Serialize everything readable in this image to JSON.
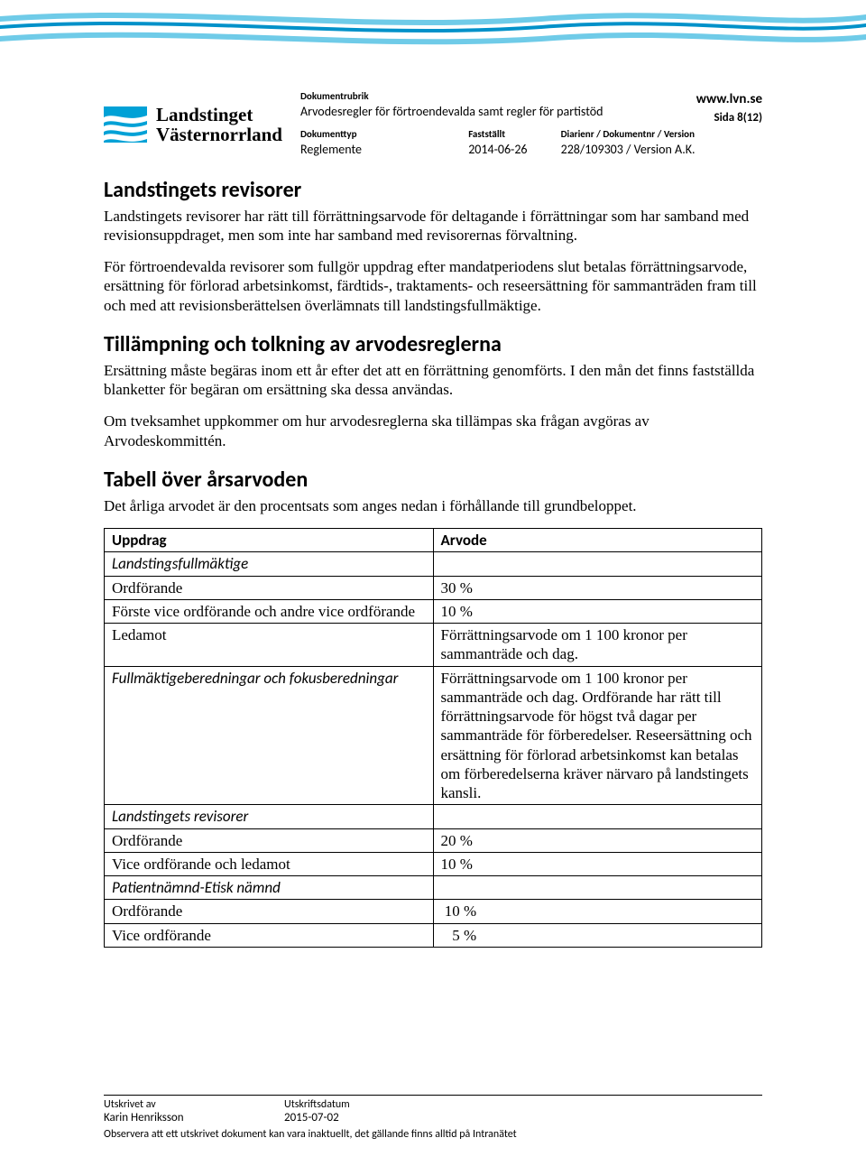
{
  "logo": {
    "line1": "Landstinget",
    "line2": "Västernorrland"
  },
  "header": {
    "rubrik_label": "Dokumentrubrik",
    "rubrik_value": "Arvodesregler för förtroendevalda samt regler för partistöd",
    "typ_label": "Dokumenttyp",
    "typ_value": "Reglemente",
    "fast_label": "Fastställt",
    "fast_value": "2014-06-26",
    "diarie_label": "Diarienr / Dokumentnr / Version",
    "diarie_value": "228/109303 / Version  A.K.",
    "url": "www.lvn.se",
    "sida": "Sida 8(12)"
  },
  "sections": {
    "s1_title": "Landstingets revisorer",
    "s1_p1": "Landstingets revisorer har rätt till förrättningsarvode för deltagande i förrättningar som har samband med revisionsuppdraget, men som inte har samband med revisorernas förvaltning.",
    "s1_p2": "För förtroendevalda revisorer som fullgör uppdrag efter mandatperiodens slut betalas förrättningsarvode, ersättning för förlorad arbetsinkomst, färdtids-, traktaments- och reseersättning för sammanträden fram till och med att revisionsberättelsen överlämnats till landstingsfullmäktige.",
    "s2_title": "Tillämpning och tolkning av arvodesreglerna",
    "s2_p1": "Ersättning måste begäras inom ett år efter det att en förrättning genomförts. I den mån det finns fastställda blanketter för begäran om ersättning ska dessa användas.",
    "s2_p2": "Om tveksamhet uppkommer om hur arvodesreglerna ska tillämpas ska frågan avgöras av Arvodeskommittén.",
    "s3_title": "Tabell över årsarvoden",
    "s3_p1": "Det årliga arvodet är den procentsats som anges nedan i förhållande till grundbeloppet."
  },
  "table": {
    "h1": "Uppdrag",
    "h2": "Arvode",
    "rows": [
      {
        "c1": "Landstingsfullmäktige",
        "c2": "",
        "section": true
      },
      {
        "c1": "Ordförande",
        "c2": "30 %"
      },
      {
        "c1": "Förste vice ordförande och andre vice ordförande",
        "c2": "10 %"
      },
      {
        "c1": "Ledamot",
        "c2": "Förrättningsarvode om 1 100 kronor per sammanträde och dag."
      },
      {
        "c1": "Fullmäktigeberedningar och fokusberedningar",
        "c1_section": true,
        "c2": "Förrättningsarvode om 1 100 kronor per sammanträde och dag. Ordförande har rätt till förrättningsarvode för högst två dagar per sammanträde för förberedelser. Reseersättning och ersättning för förlorad arbetsinkomst kan betalas om förberedelserna kräver närvaro på landstingets kansli."
      },
      {
        "c1": "Landstingets revisorer",
        "c2": "",
        "section": true
      },
      {
        "c1": "Ordförande",
        "c2": "20 %"
      },
      {
        "c1": "Vice ordförande och ledamot",
        "c2": "10 %"
      },
      {
        "c1": "Patientnämnd-Etisk nämnd",
        "c2": "",
        "section": true
      },
      {
        "c1": "Ordförande",
        "c2": " 10 %"
      },
      {
        "c1": "Vice ordförande",
        "c2": "   5 %"
      }
    ]
  },
  "footer": {
    "l1": "Utskrivet av",
    "v1": "Karin Henriksson",
    "l2": "Utskriftsdatum",
    "v2": "2015-07-02",
    "note": "Observera att ett utskrivet dokument kan vara inaktuellt, det gällande finns alltid på Intranätet"
  },
  "colors": {
    "wave_light": "#6fcbe8",
    "wave_dark": "#0091c9",
    "logo_bg": "#00a1d6",
    "logo_wave": "#ffffff"
  }
}
